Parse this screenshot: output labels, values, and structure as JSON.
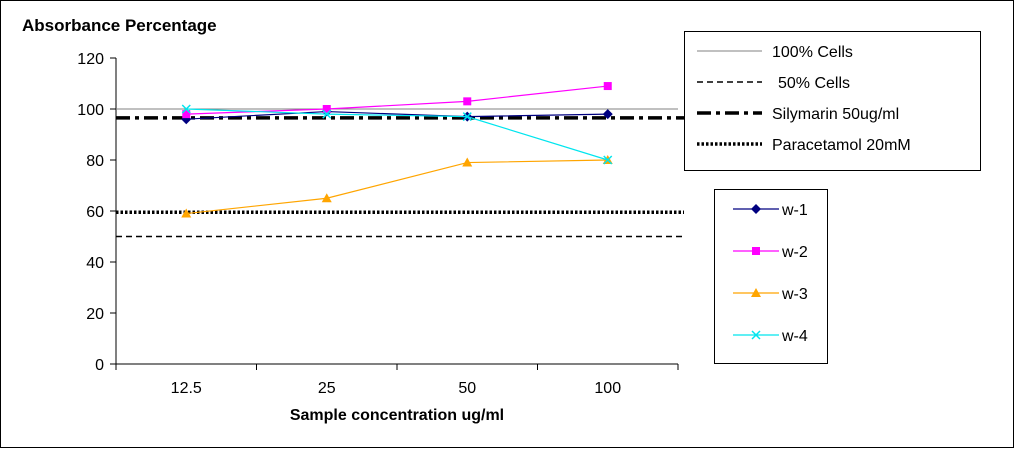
{
  "chart_data": {
    "type": "line",
    "title": "Absorbance Percentage",
    "xlabel": "Sample concentration ug/ml",
    "ylabel": "",
    "categories": [
      "12.5",
      "25",
      "50",
      "100"
    ],
    "ylim": [
      0,
      120
    ],
    "yticks": [
      0,
      20,
      40,
      60,
      80,
      100,
      120
    ],
    "grid": false,
    "series": [
      {
        "name": "w-1",
        "values": [
          96,
          99,
          97,
          98
        ],
        "color": "#000080",
        "marker": "diamond"
      },
      {
        "name": "w-2",
        "values": [
          98,
          100,
          103,
          109
        ],
        "color": "#ff00ff",
        "marker": "square"
      },
      {
        "name": "w-3",
        "values": [
          59,
          65,
          79,
          80
        ],
        "color": "#ffa500",
        "marker": "triangle"
      },
      {
        "name": "w-4",
        "values": [
          100,
          98,
          97,
          80
        ],
        "color": "#00e5ee",
        "marker": "x"
      }
    ],
    "reference_lines": [
      {
        "name": "100% Cells",
        "value": 100,
        "style": "solid",
        "color": "#808080"
      },
      {
        "name": "50% Cells",
        "value": 50,
        "style": "dashed",
        "color": "#000000"
      },
      {
        "name": "Silymarin 50ug/ml",
        "value": 96.5,
        "style": "dash-dot",
        "color": "#000000"
      },
      {
        "name": "Paracetamol 20mM",
        "value": 59.5,
        "style": "dotted",
        "color": "#000000"
      }
    ],
    "legend": {
      "reference_placement": "top-right",
      "series_placement": "right"
    }
  }
}
